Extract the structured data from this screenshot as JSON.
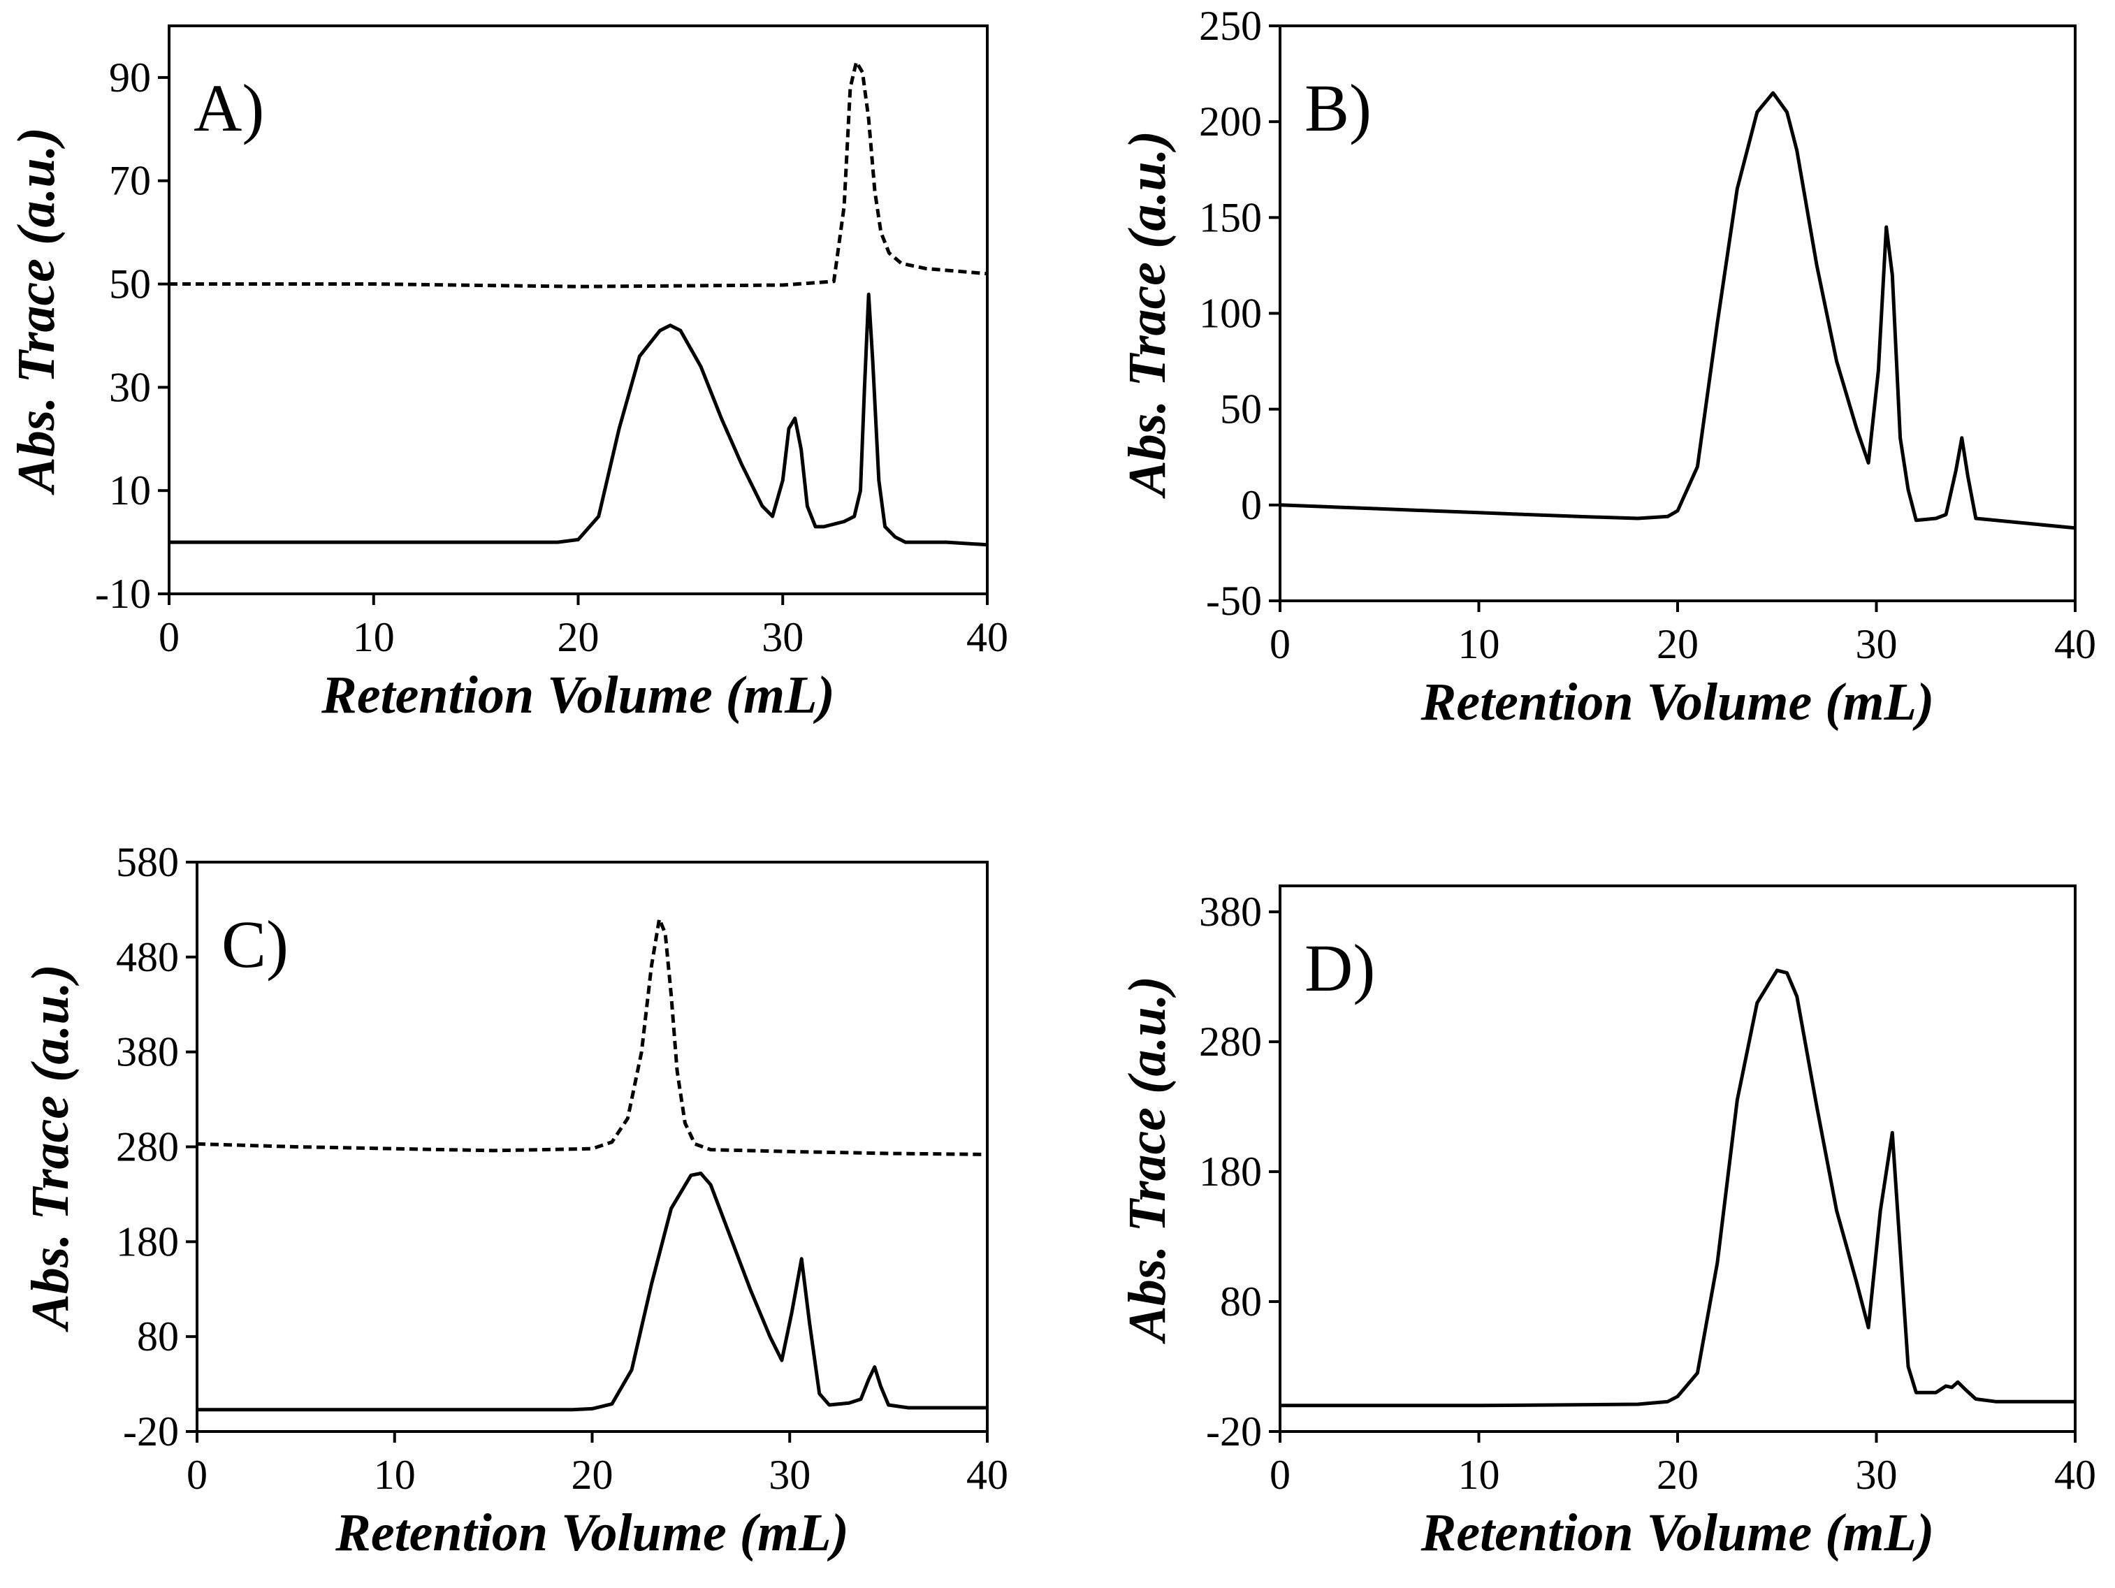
{
  "chart_data": [
    {
      "type": "line",
      "panel_label": "A)",
      "xlabel": "Retention Volume (mL)",
      "ylabel": "Abs. Trace (a.u.)",
      "xlim": [
        0,
        40
      ],
      "ylim": [
        -10,
        100
      ],
      "xticks": [
        0,
        10,
        20,
        30,
        40
      ],
      "yticks": [
        -10,
        10,
        30,
        50,
        70,
        90
      ],
      "series": [
        {
          "name": "solid",
          "style": "solid",
          "x": [
            0,
            5,
            10,
            15,
            19,
            20,
            21,
            22,
            23,
            24,
            24.5,
            25,
            26,
            27,
            28,
            29,
            29.5,
            30,
            30.3,
            30.6,
            30.9,
            31.2,
            31.6,
            32,
            33,
            33.5,
            33.8,
            34,
            34.2,
            34.4,
            34.7,
            35,
            35.5,
            36,
            38,
            40
          ],
          "y": [
            0,
            0,
            0,
            0,
            0,
            0.5,
            5,
            22,
            36,
            41,
            42,
            41,
            34,
            24,
            15,
            7,
            5,
            12,
            22,
            24,
            18,
            7,
            3,
            3,
            4,
            5,
            10,
            30,
            48,
            35,
            12,
            3,
            1,
            0,
            0,
            -0.5
          ]
        },
        {
          "name": "dashed",
          "style": "dashed",
          "x": [
            0,
            10,
            20,
            30,
            32.5,
            33,
            33.3,
            33.6,
            33.9,
            34.2,
            34.5,
            34.8,
            35.2,
            35.8,
            37,
            40
          ],
          "y": [
            50,
            50,
            49.5,
            49.8,
            50.5,
            65,
            88,
            93,
            91,
            82,
            68,
            60,
            56,
            54,
            53,
            52
          ]
        }
      ]
    },
    {
      "type": "line",
      "panel_label": "B)",
      "xlabel": "Retention Volume (mL)",
      "ylabel": "Abs. Trace (a.u.)",
      "xlim": [
        0,
        40
      ],
      "ylim": [
        -50,
        250
      ],
      "xticks": [
        0,
        10,
        20,
        30,
        40
      ],
      "yticks": [
        -50,
        0,
        50,
        100,
        150,
        200,
        250
      ],
      "series": [
        {
          "name": "solid",
          "style": "solid",
          "x": [
            0,
            5,
            10,
            15,
            18,
            19.5,
            20,
            21,
            22,
            23,
            24,
            24.8,
            25.5,
            26,
            27,
            28,
            29,
            29.6,
            30.1,
            30.5,
            30.8,
            31.2,
            31.6,
            32,
            33,
            33.5,
            34,
            34.3,
            34.6,
            35,
            36,
            38,
            40
          ],
          "y": [
            0,
            -2,
            -4,
            -6,
            -7,
            -6,
            -3,
            20,
            95,
            165,
            205,
            215,
            205,
            185,
            125,
            75,
            40,
            22,
            70,
            145,
            120,
            35,
            8,
            -8,
            -7,
            -5,
            18,
            35,
            15,
            -7,
            -8,
            -10,
            -12
          ]
        }
      ]
    },
    {
      "type": "line",
      "panel_label": "C)",
      "xlabel": "Retention Volume (mL)",
      "ylabel": "Abs. Trace (a.u.)",
      "xlim": [
        0,
        40
      ],
      "ylim": [
        -20,
        580
      ],
      "xticks": [
        0,
        10,
        20,
        30,
        40
      ],
      "yticks": [
        -20,
        80,
        180,
        280,
        380,
        480,
        580
      ],
      "series": [
        {
          "name": "solid",
          "style": "solid",
          "x": [
            0,
            10,
            19,
            20,
            21,
            22,
            23,
            24,
            25,
            25.5,
            26,
            27,
            28,
            29,
            29.6,
            30.1,
            30.6,
            31,
            31.5,
            32,
            33,
            33.6,
            34,
            34.3,
            34.6,
            35,
            36,
            38,
            40
          ],
          "y": [
            3,
            3,
            3,
            4,
            9,
            45,
            135,
            215,
            250,
            252,
            240,
            185,
            130,
            80,
            55,
            105,
            162,
            95,
            20,
            8,
            10,
            14,
            35,
            48,
            28,
            8,
            5,
            5,
            5
          ]
        },
        {
          "name": "dashed",
          "style": "dashed",
          "x": [
            0,
            5,
            10,
            15,
            20,
            21,
            21.8,
            22.5,
            23,
            23.4,
            23.7,
            24,
            24.3,
            24.7,
            25.2,
            26,
            30,
            35,
            40
          ],
          "y": [
            283,
            280,
            278,
            276,
            278,
            285,
            310,
            380,
            470,
            520,
            505,
            440,
            360,
            305,
            283,
            277,
            275,
            273,
            272
          ]
        }
      ]
    },
    {
      "type": "line",
      "panel_label": "D)",
      "xlabel": "Retention Volume (mL)",
      "ylabel": "Abs. Trace (a.u.)",
      "xlim": [
        0,
        40
      ],
      "ylim": [
        -20,
        400
      ],
      "xticks": [
        0,
        10,
        20,
        30,
        40
      ],
      "yticks": [
        -20,
        80,
        180,
        280,
        380
      ],
      "series": [
        {
          "name": "solid",
          "style": "solid",
          "x": [
            0,
            10,
            18,
            19.5,
            20,
            21,
            22,
            23,
            24,
            25,
            25.5,
            26,
            27,
            28,
            29,
            29.6,
            30.2,
            30.8,
            31.2,
            31.6,
            32,
            33,
            33.5,
            33.8,
            34.1,
            34.5,
            35,
            36,
            38,
            40
          ],
          "y": [
            0,
            0,
            1,
            3,
            7,
            25,
            110,
            235,
            310,
            335,
            333,
            315,
            230,
            150,
            95,
            60,
            150,
            210,
            120,
            30,
            10,
            10,
            15,
            14,
            18,
            12,
            5,
            3,
            3,
            3
          ]
        }
      ]
    }
  ]
}
